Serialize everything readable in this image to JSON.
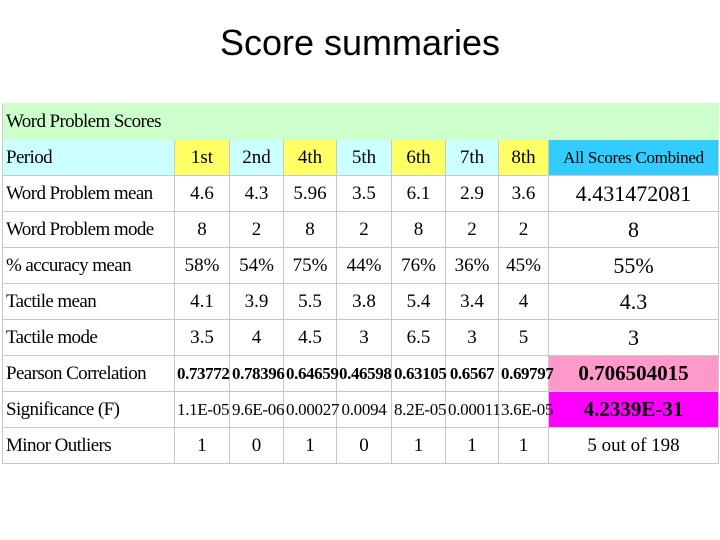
{
  "slide": {
    "title": "Score summaries"
  },
  "table": {
    "header_label": "Word Problem Scores",
    "period_label": "Period",
    "periods": [
      "1st",
      "2nd",
      "4th",
      "5th",
      "6th",
      "7th",
      "8th"
    ],
    "combined_label": "All Scores Combined",
    "rows": [
      {
        "label": "Word Problem mean",
        "values": [
          "4.6",
          "4.3",
          "5.96",
          "3.5",
          "6.1",
          "2.9",
          "3.6"
        ],
        "combined": "4.431472081"
      },
      {
        "label": "Word Problem mode",
        "values": [
          "8",
          "2",
          "8",
          "2",
          "8",
          "2",
          "2"
        ],
        "combined": "8"
      },
      {
        "label": "% accuracy mean",
        "values": [
          "58%",
          "54%",
          "75%",
          "44%",
          "76%",
          "36%",
          "45%"
        ],
        "combined": "55%"
      },
      {
        "label": "Tactile mean",
        "values": [
          "4.1",
          "3.9",
          "5.5",
          "3.8",
          "5.4",
          "3.4",
          "4"
        ],
        "combined": "4.3"
      },
      {
        "label": "Tactile mode",
        "values": [
          "3.5",
          "4",
          "4.5",
          "3",
          "6.5",
          "3",
          "5"
        ],
        "combined": "3"
      },
      {
        "label": "Pearson Correlation",
        "values": [
          "0.73772",
          "0.78396",
          "0.64659",
          "0.46598",
          "0.63105",
          "0.6567",
          "0.69797"
        ],
        "combined": "0.706504015"
      },
      {
        "label": "Significance (F)",
        "values": [
          "1.1E-05",
          "9.6E-06",
          "0.00027",
          "0.0094",
          "8.2E-05",
          "0.00011",
          "3.6E-05"
        ],
        "combined": "4.2339E-31"
      },
      {
        "label": "Minor Outliers",
        "values": [
          "1",
          "0",
          "1",
          "0",
          "1",
          "1",
          "1"
        ],
        "combined": "5 out of 198"
      }
    ]
  },
  "colors": {
    "header_bg": "#ccffcc",
    "period_yellow": "#ffff66",
    "period_cyan": "#ccffff",
    "combined_header": "#33ccff",
    "pearson_highlight": "#ff99cc",
    "significance_highlight": "#ff00ff"
  }
}
